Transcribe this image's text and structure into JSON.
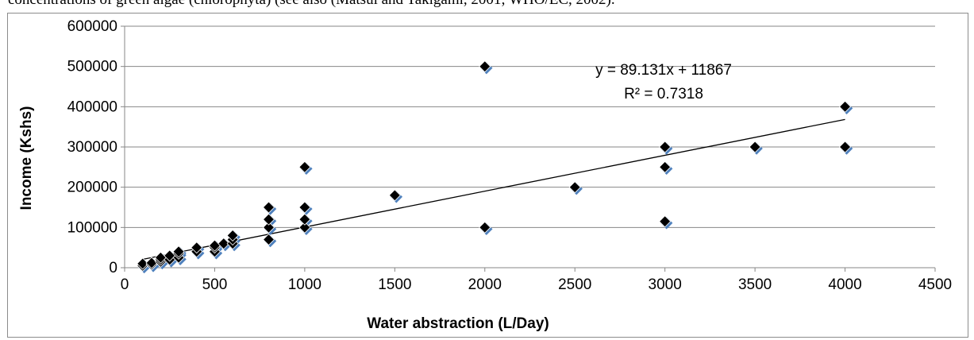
{
  "header_text": "concentrations of green algae (chlorophyta) (see also (Matsui and Takigami, 2001; WHO/EC, 2002).",
  "chart_data": {
    "type": "scatter",
    "title": "",
    "xlabel": "Water abstraction (L/Day)",
    "ylabel": "Income (Kshs)",
    "xlim": [
      0,
      4500
    ],
    "ylim": [
      0,
      600000
    ],
    "x_ticks": [
      "0",
      "500",
      "1000",
      "1500",
      "2000",
      "2500",
      "3000",
      "3500",
      "4000",
      "4500"
    ],
    "y_ticks": [
      "0",
      "100000",
      "200000",
      "300000",
      "400000",
      "500000",
      "600000"
    ],
    "grid": "horizontal",
    "series": [
      {
        "marker": "diamond",
        "shadow_color": "#4f81bd",
        "color": "#000000",
        "points": [
          [
            100,
            5000
          ],
          [
            100,
            10000
          ],
          [
            150,
            8000
          ],
          [
            150,
            12000
          ],
          [
            200,
            15000
          ],
          [
            200,
            20000
          ],
          [
            200,
            25000
          ],
          [
            250,
            20000
          ],
          [
            250,
            30000
          ],
          [
            300,
            25000
          ],
          [
            300,
            35000
          ],
          [
            300,
            40000
          ],
          [
            400,
            40000
          ],
          [
            400,
            50000
          ],
          [
            500,
            40000
          ],
          [
            500,
            50000
          ],
          [
            500,
            55000
          ],
          [
            550,
            60000
          ],
          [
            600,
            60000
          ],
          [
            600,
            70000
          ],
          [
            600,
            80000
          ],
          [
            800,
            70000
          ],
          [
            800,
            100000
          ],
          [
            800,
            120000
          ],
          [
            800,
            150000
          ],
          [
            1000,
            100000
          ],
          [
            1000,
            120000
          ],
          [
            1000,
            150000
          ],
          [
            1000,
            250000
          ],
          [
            1500,
            180000
          ],
          [
            2000,
            100000
          ],
          [
            2000,
            500000
          ],
          [
            2500,
            200000
          ],
          [
            3000,
            115000
          ],
          [
            3000,
            250000
          ],
          [
            3000,
            300000
          ],
          [
            3500,
            300000
          ],
          [
            4000,
            300000
          ],
          [
            4000,
            400000
          ]
        ]
      }
    ],
    "trendline": {
      "slope": 89.131,
      "intercept": 11867,
      "x_range": [
        100,
        4000
      ],
      "equation": "y = 89.131x + 11867",
      "r_squared": "R² = 0.7318"
    }
  }
}
